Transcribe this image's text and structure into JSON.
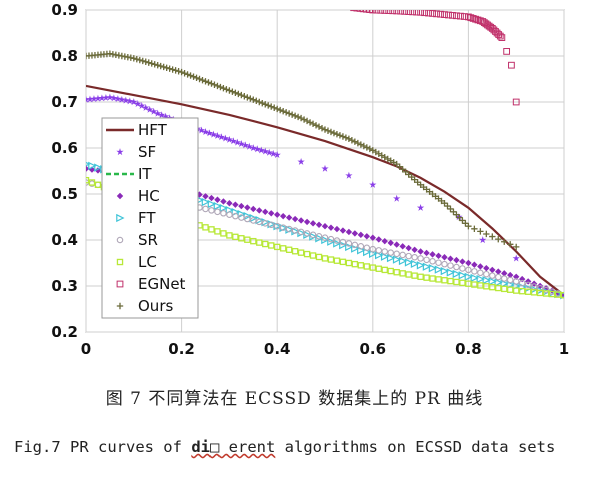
{
  "caption": {
    "cn": "图 7 不同算法在 ECSSD 数据集上的 PR 曲线",
    "en_prefix": "Fig.7 PR curves of ",
    "en_frag1": "di",
    "en_glyph": "□",
    "en_frag2": " erent",
    "en_suffix": " algorithms on ECSSD data sets"
  },
  "chart_data": {
    "type": "line",
    "xlabel": "",
    "ylabel": "",
    "xlim": [
      0,
      1
    ],
    "ylim": [
      0.2,
      0.9
    ],
    "xticks": [
      "0",
      "0.2",
      "0.4",
      "0.6",
      "0.8",
      "1"
    ],
    "yticks": [
      "0.2",
      "0.3",
      "0.4",
      "0.5",
      "0.6",
      "0.7",
      "0.8",
      "0.9"
    ],
    "legend_position": "left",
    "series": [
      {
        "name": "HFT",
        "marker": "line",
        "color": "#7a2a2a",
        "x": [
          0,
          0.1,
          0.2,
          0.3,
          0.4,
          0.5,
          0.6,
          0.65,
          0.7,
          0.75,
          0.8,
          0.85,
          0.9,
          0.95,
          1.0
        ],
        "y": [
          0.735,
          0.715,
          0.695,
          0.672,
          0.645,
          0.615,
          0.58,
          0.56,
          0.535,
          0.505,
          0.47,
          0.425,
          0.375,
          0.32,
          0.28
        ]
      },
      {
        "name": "SF",
        "marker": "star",
        "color": "#8a3ee8",
        "x": [
          0.0,
          0.05,
          0.1,
          0.15,
          0.2,
          0.25,
          0.3,
          0.35,
          0.4,
          0.45,
          0.5,
          0.55,
          0.6,
          0.65,
          0.7,
          0.78,
          0.83,
          0.9,
          1.0
        ],
        "y": [
          0.705,
          0.71,
          0.7,
          0.675,
          0.655,
          0.635,
          0.618,
          0.6,
          0.585,
          0.57,
          0.555,
          0.54,
          0.52,
          0.49,
          0.47,
          0.45,
          0.4,
          0.36,
          0.28
        ]
      },
      {
        "name": "IT",
        "marker": "dashed",
        "color": "#2ab84a",
        "x": [],
        "y": []
      },
      {
        "name": "HC",
        "marker": "diamond",
        "color": "#8a2ab8",
        "x": [
          0.0,
          0.1,
          0.2,
          0.3,
          0.4,
          0.5,
          0.6,
          0.7,
          0.8,
          0.9,
          1.0
        ],
        "y": [
          0.555,
          0.54,
          0.51,
          0.48,
          0.455,
          0.43,
          0.405,
          0.375,
          0.35,
          0.32,
          0.28
        ]
      },
      {
        "name": "FT",
        "marker": "triangle",
        "color": "#40c4d8",
        "x": [
          0.0,
          0.1,
          0.2,
          0.3,
          0.4,
          0.5,
          0.6,
          0.7,
          0.8,
          0.9,
          1.0
        ],
        "y": [
          0.565,
          0.535,
          0.5,
          0.465,
          0.43,
          0.4,
          0.37,
          0.345,
          0.32,
          0.3,
          0.28
        ]
      },
      {
        "name": "SR",
        "marker": "circle",
        "color": "#b0a8b8",
        "x": [
          0.0,
          0.1,
          0.2,
          0.3,
          0.4,
          0.5,
          0.6,
          0.7,
          0.8,
          0.9,
          1.0
        ],
        "y": [
          0.525,
          0.505,
          0.48,
          0.455,
          0.43,
          0.405,
          0.38,
          0.36,
          0.335,
          0.31,
          0.28
        ]
      },
      {
        "name": "LC",
        "marker": "square",
        "color": "#b8e838",
        "x": [
          0.0,
          0.1,
          0.2,
          0.3,
          0.4,
          0.5,
          0.6,
          0.7,
          0.8,
          0.9,
          1.0
        ],
        "y": [
          0.53,
          0.49,
          0.445,
          0.41,
          0.385,
          0.36,
          0.34,
          0.32,
          0.305,
          0.29,
          0.28
        ]
      },
      {
        "name": "EGNet",
        "marker": "square-open",
        "color": "#c0306a",
        "x": [
          0.56,
          0.6,
          0.65,
          0.7,
          0.75,
          0.8,
          0.83,
          0.85,
          0.87,
          0.88,
          0.89,
          0.9
        ],
        "y": [
          0.905,
          0.9,
          0.898,
          0.895,
          0.89,
          0.885,
          0.875,
          0.86,
          0.84,
          0.81,
          0.78,
          0.7
        ]
      },
      {
        "name": "Ours",
        "marker": "plus",
        "color": "#6b6b3a",
        "x": [
          0.0,
          0.05,
          0.1,
          0.15,
          0.2,
          0.25,
          0.3,
          0.35,
          0.4,
          0.45,
          0.5,
          0.55,
          0.6,
          0.65,
          0.7,
          0.75,
          0.8,
          0.9
        ],
        "y": [
          0.8,
          0.805,
          0.795,
          0.78,
          0.765,
          0.745,
          0.725,
          0.705,
          0.685,
          0.665,
          0.64,
          0.62,
          0.595,
          0.565,
          0.52,
          0.48,
          0.43,
          0.385
        ]
      }
    ]
  }
}
